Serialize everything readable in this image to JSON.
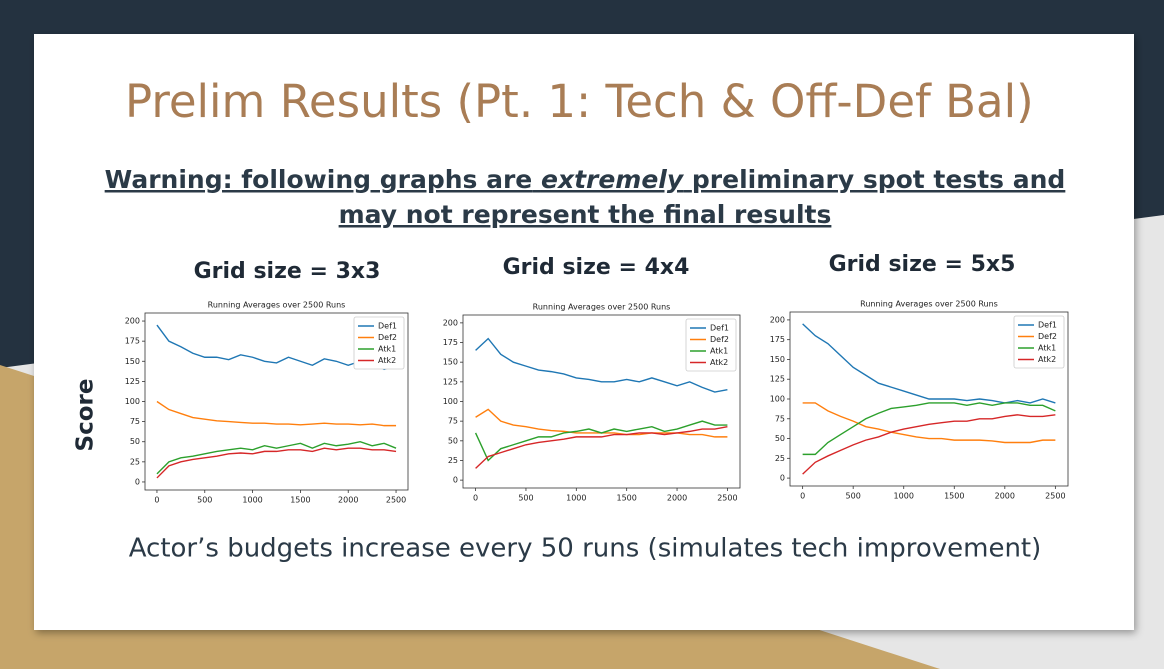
{
  "slide": {
    "title": "Prelim Results (Pt. 1: Tech & Off-Def Bal)",
    "warning": [
      "Warning: following graphs are",
      "extremely",
      "preliminary spot tests and",
      "may not represent the final results"
    ],
    "y_label": "Score",
    "footer": "Actor’s budgets increase every 50 runs (simulates tech improvement)"
  },
  "chart_data": [
    {
      "type": "line",
      "heading": "Grid size = 3x3",
      "title": "Running Averages over 2500 Runs",
      "x": [
        0,
        125,
        250,
        375,
        500,
        625,
        750,
        875,
        1000,
        1125,
        1250,
        1375,
        1500,
        1625,
        1750,
        1875,
        2000,
        2125,
        2250,
        2375,
        2500
      ],
      "series": [
        {
          "name": "Def1",
          "color": "#1f77b4",
          "values": [
            195,
            175,
            168,
            160,
            155,
            155,
            152,
            158,
            155,
            150,
            148,
            155,
            150,
            145,
            153,
            150,
            145,
            150,
            150,
            140,
            145
          ]
        },
        {
          "name": "Def2",
          "color": "#ff7f0e",
          "values": [
            100,
            90,
            85,
            80,
            78,
            76,
            75,
            74,
            73,
            73,
            72,
            72,
            71,
            72,
            73,
            72,
            72,
            71,
            72,
            70,
            70
          ]
        },
        {
          "name": "Atk1",
          "color": "#2ca02c",
          "values": [
            10,
            25,
            30,
            32,
            35,
            38,
            40,
            42,
            40,
            45,
            42,
            45,
            48,
            42,
            48,
            45,
            47,
            50,
            45,
            48,
            42
          ]
        },
        {
          "name": "Atk2",
          "color": "#d62728",
          "values": [
            5,
            20,
            25,
            28,
            30,
            32,
            35,
            36,
            35,
            38,
            38,
            40,
            40,
            38,
            42,
            40,
            42,
            42,
            40,
            40,
            38
          ]
        }
      ],
      "xlim": [
        -125,
        2625
      ],
      "ylim": [
        -10,
        210
      ],
      "xticks": [
        0,
        500,
        1000,
        1500,
        2000,
        2500
      ],
      "yticks": [
        0,
        25,
        50,
        75,
        100,
        125,
        150,
        175,
        200
      ],
      "legend": "upper right"
    },
    {
      "type": "line",
      "heading": "Grid size = 4x4",
      "title": "Running Averages over 2500 Runs",
      "x": [
        0,
        125,
        250,
        375,
        500,
        625,
        750,
        875,
        1000,
        1125,
        1250,
        1375,
        1500,
        1625,
        1750,
        1875,
        2000,
        2125,
        2250,
        2375,
        2500
      ],
      "series": [
        {
          "name": "Def1",
          "color": "#1f77b4",
          "values": [
            165,
            180,
            160,
            150,
            145,
            140,
            138,
            135,
            130,
            128,
            125,
            125,
            128,
            125,
            130,
            125,
            120,
            125,
            118,
            112,
            115
          ]
        },
        {
          "name": "Def2",
          "color": "#ff7f0e",
          "values": [
            80,
            90,
            75,
            70,
            68,
            65,
            63,
            62,
            60,
            60,
            60,
            60,
            58,
            58,
            60,
            60,
            60,
            58,
            58,
            55,
            55
          ]
        },
        {
          "name": "Atk1",
          "color": "#2ca02c",
          "values": [
            60,
            25,
            40,
            45,
            50,
            55,
            55,
            60,
            62,
            65,
            60,
            65,
            62,
            65,
            68,
            62,
            65,
            70,
            75,
            70,
            70
          ]
        },
        {
          "name": "Atk2",
          "color": "#d62728",
          "values": [
            15,
            30,
            35,
            40,
            45,
            48,
            50,
            52,
            55,
            55,
            55,
            58,
            58,
            60,
            60,
            58,
            60,
            62,
            65,
            65,
            68
          ]
        }
      ],
      "xlim": [
        -125,
        2625
      ],
      "ylim": [
        -10,
        210
      ],
      "xticks": [
        0,
        500,
        1000,
        1500,
        2000,
        2500
      ],
      "yticks": [
        0,
        25,
        50,
        75,
        100,
        125,
        150,
        175,
        200
      ],
      "legend": "upper right"
    },
    {
      "type": "line",
      "heading": "Grid size = 5x5",
      "title": "Running Averages over 2500 Runs",
      "x": [
        0,
        125,
        250,
        375,
        500,
        625,
        750,
        875,
        1000,
        1125,
        1250,
        1375,
        1500,
        1625,
        1750,
        1875,
        2000,
        2125,
        2250,
        2375,
        2500
      ],
      "series": [
        {
          "name": "Def1",
          "color": "#1f77b4",
          "values": [
            195,
            180,
            170,
            155,
            140,
            130,
            120,
            115,
            110,
            105,
            100,
            100,
            100,
            98,
            100,
            98,
            95,
            98,
            95,
            100,
            95
          ]
        },
        {
          "name": "Def2",
          "color": "#ff7f0e",
          "values": [
            95,
            95,
            85,
            78,
            72,
            65,
            62,
            58,
            55,
            52,
            50,
            50,
            48,
            48,
            48,
            47,
            45,
            45,
            45,
            48,
            48
          ]
        },
        {
          "name": "Atk1",
          "color": "#2ca02c",
          "values": [
            30,
            30,
            45,
            55,
            65,
            75,
            82,
            88,
            90,
            92,
            95,
            95,
            95,
            92,
            95,
            92,
            95,
            95,
            92,
            92,
            85
          ]
        },
        {
          "name": "Atk2",
          "color": "#d62728",
          "values": [
            5,
            20,
            28,
            35,
            42,
            48,
            52,
            58,
            62,
            65,
            68,
            70,
            72,
            72,
            75,
            75,
            78,
            80,
            78,
            78,
            80
          ]
        }
      ],
      "xlim": [
        -125,
        2625
      ],
      "ylim": [
        -10,
        210
      ],
      "xticks": [
        0,
        500,
        1000,
        1500,
        2000,
        2500
      ],
      "yticks": [
        0,
        25,
        50,
        75,
        100,
        125,
        150,
        175,
        200
      ],
      "legend": "upper right"
    }
  ]
}
